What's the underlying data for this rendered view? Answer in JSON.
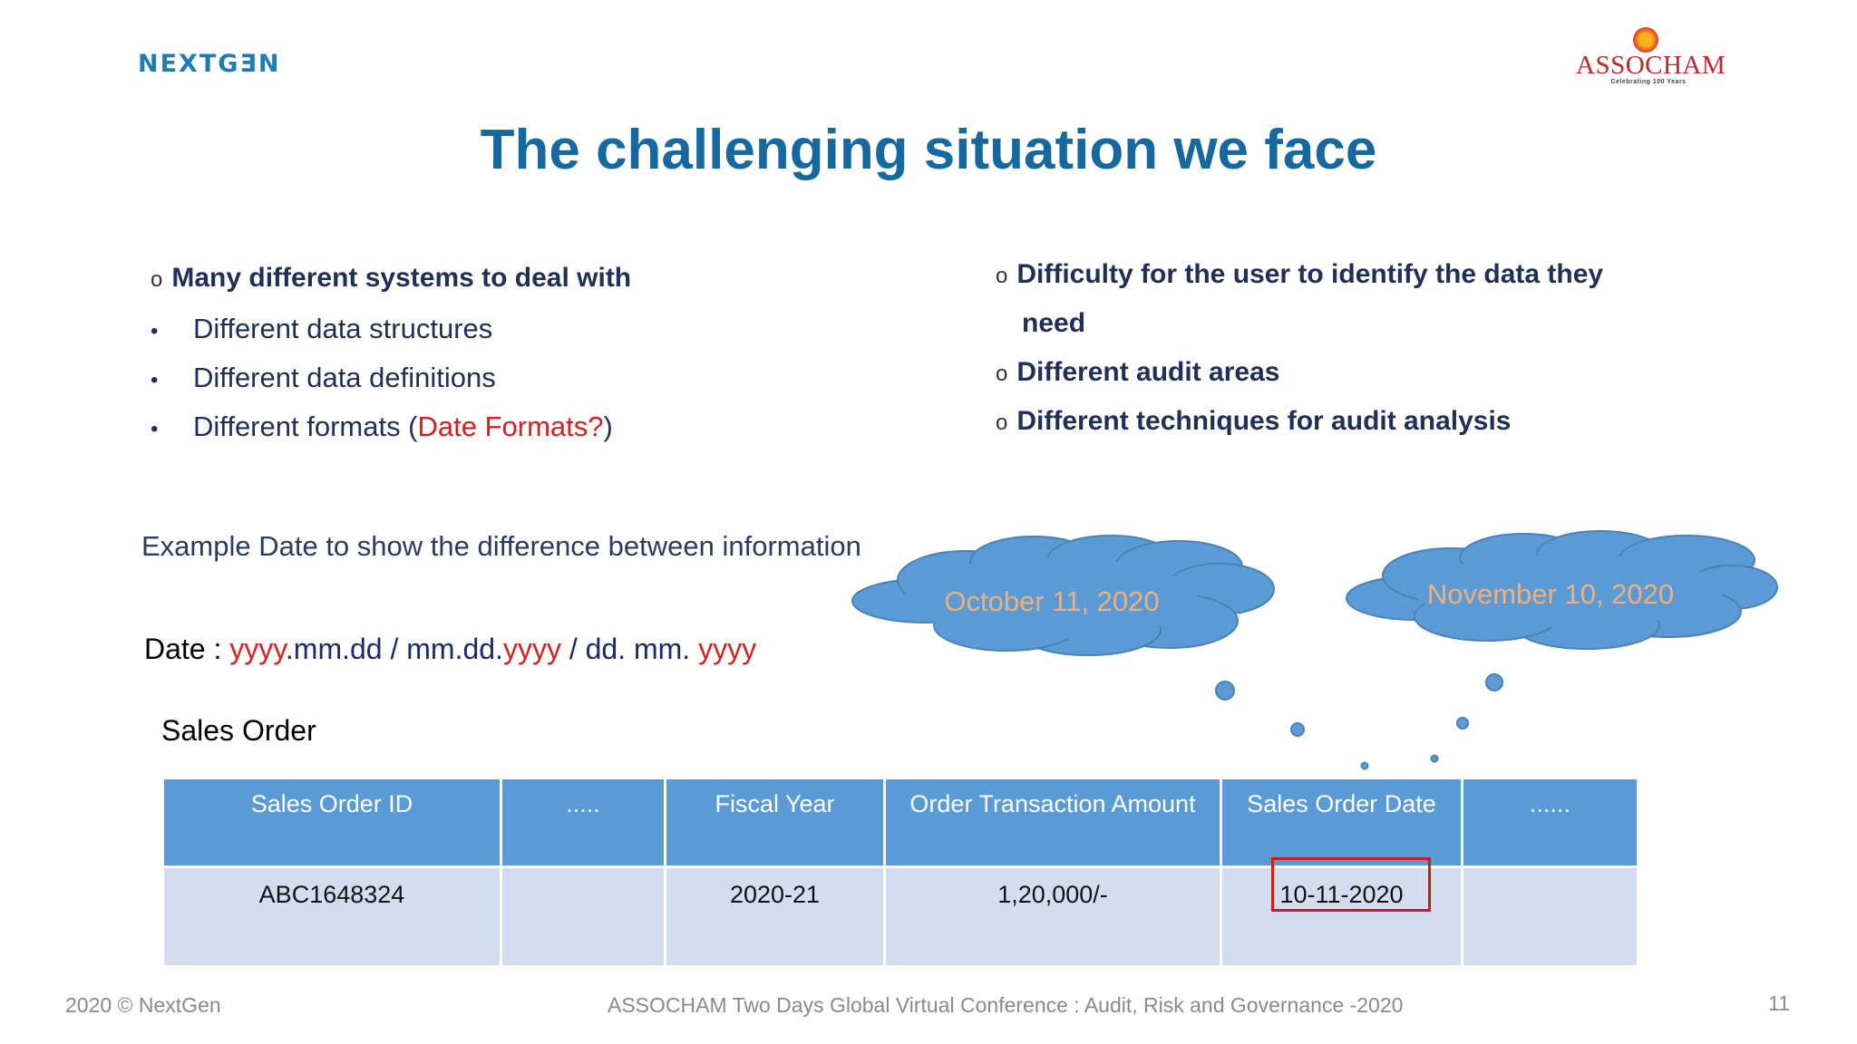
{
  "logos": {
    "nextgen": "NEXTGƎN",
    "assocham": "ASSOCHAM",
    "assocham_tagline": "Celebrating 100 Years"
  },
  "title": "The challenging situation we face",
  "left_bullets": {
    "heading": "Many different systems to deal with",
    "items": [
      "Different data structures",
      "Different data definitions",
      "Different formats ("
    ],
    "date_formats_text": "Date Formats?",
    "close_paren": ")"
  },
  "right_bullets": {
    "item1_line1": "Difficulty for the user to identify the data they",
    "item1_line2": "need",
    "item2": "Different audit areas",
    "item3": "Different techniques for audit analysis"
  },
  "bullet_marks": {
    "circle": "o",
    "dot": "•"
  },
  "example_text": "Example Date to show the difference between information",
  "date_line": {
    "label": "Date : ",
    "f1_year": "yyyy",
    "f1_rest": ".mm.dd  /  ",
    "f2_start": "mm.dd.",
    "f2_year": "yyyy",
    "f3_start": "  / dd. mm. ",
    "f3_year": "yyyy"
  },
  "clouds": {
    "left": "October 11, 2020",
    "right": "November 10, 2020"
  },
  "sales_order": {
    "title": "Sales Order",
    "headers": [
      "Sales Order ID",
      ".....",
      "Fiscal Year",
      "Order Transaction Amount",
      "Sales Order Date",
      "......"
    ],
    "row": [
      "ABC1648324",
      "",
      "2020-21",
      "1,20,000/-",
      "10-11-2020",
      ""
    ]
  },
  "footer": {
    "left": "2020 © NextGen",
    "center": "ASSOCHAM  Two Days Global Virtual Conference : Audit, Risk and Governance -2020",
    "page": "11"
  },
  "colors": {
    "title": "#1568a0",
    "cloud_fill": "#5b9bd5",
    "cloud_text": "#f1b07b",
    "table_header": "#5b9bd5",
    "table_row": "#d2deef",
    "highlight": "#d11b1b"
  }
}
